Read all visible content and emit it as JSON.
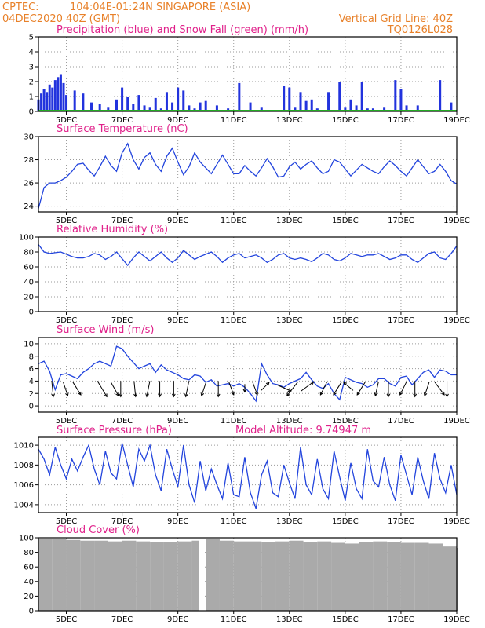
{
  "header": {
    "source": "CPTEC:",
    "location": "104:04E-01:24N  SINGAPORE (ASIA)",
    "run": "04DEC2020 40Z (GMT)",
    "grid_note": "Vertical Grid Line: 40Z",
    "code": "TQ0126L028"
  },
  "colors": {
    "header": "#e8812a",
    "titles": "#e0208a",
    "precip": "#2233dd",
    "snow": "#22aa22",
    "line": "#2244dd",
    "cloud": "#aaaaaa",
    "arrow": "#000000"
  },
  "x_axis": {
    "start_day": 4,
    "end_day": 19,
    "tick_labels": [
      "5DEC",
      "7DEC",
      "9DEC",
      "11DEC",
      "13DEC",
      "15DEC",
      "17DEC",
      "19DEC"
    ]
  },
  "panels": [
    {
      "id": "precip",
      "title": "Precipitation (blue) and Snow Fall (green) (mm/h)",
      "type": "bar",
      "ylim": [
        0,
        5
      ],
      "yticks": [
        "0",
        "1",
        "2",
        "3",
        "4",
        "5"
      ]
    },
    {
      "id": "temp",
      "title": "Surface Temperature (nC)",
      "type": "line",
      "ylim": [
        23.5,
        30
      ],
      "yticks": [
        "24",
        "26",
        "28",
        "30"
      ]
    },
    {
      "id": "rh",
      "title": "Relative Humidity (%)",
      "type": "line",
      "ylim": [
        0,
        100
      ],
      "yticks": [
        "0",
        "20",
        "40",
        "60",
        "80",
        "100"
      ]
    },
    {
      "id": "wind",
      "title": "Surface Wind (m/s)",
      "type": "line",
      "ylim": [
        -1,
        11
      ],
      "yticks": [
        "0",
        "2",
        "4",
        "6",
        "8",
        "10"
      ]
    },
    {
      "id": "pres",
      "title": "Surface Pressure (hPa)",
      "subtitle": "Model Altitude: 9.74947 m",
      "type": "line",
      "ylim": [
        1003.2,
        1010.8
      ],
      "yticks": [
        "1004",
        "1006",
        "1008",
        "1010"
      ]
    },
    {
      "id": "cloud",
      "title": "Cloud Cover (%)",
      "type": "bar",
      "ylim": [
        0,
        100
      ],
      "yticks": [
        "0",
        "20",
        "40",
        "60",
        "80",
        "100"
      ]
    }
  ],
  "chart_data": [
    {
      "type": "bar",
      "title": "Precipitation (blue) and Snow Fall (green) (mm/h)",
      "ylim": [
        0,
        5
      ],
      "x_days": [
        4.0,
        4.1,
        4.2,
        4.3,
        4.4,
        4.5,
        4.6,
        4.7,
        4.8,
        4.9,
        5.0,
        5.3,
        5.6,
        5.9,
        6.2,
        6.5,
        6.8,
        7.0,
        7.2,
        7.4,
        7.6,
        7.8,
        8.0,
        8.2,
        8.4,
        8.6,
        8.8,
        9.0,
        9.2,
        9.4,
        9.6,
        9.8,
        10.0,
        10.4,
        10.8,
        11.2,
        11.6,
        12.0,
        12.4,
        12.8,
        13.0,
        13.2,
        13.4,
        13.6,
        13.8,
        14.0,
        14.4,
        14.8,
        15.0,
        15.2,
        15.4,
        15.6,
        15.8,
        16.0,
        16.4,
        16.8,
        17.0,
        17.2,
        17.6,
        18.0,
        18.4,
        18.8
      ],
      "precip": [
        0.8,
        1.2,
        1.5,
        1.3,
        1.8,
        1.6,
        2.1,
        2.3,
        2.5,
        1.9,
        1.1,
        1.4,
        1.2,
        0.6,
        0.5,
        0.3,
        0.8,
        1.6,
        1.0,
        0.5,
        1.1,
        0.4,
        0.3,
        0.9,
        0.2,
        1.3,
        0.6,
        1.6,
        1.4,
        0.4,
        0.2,
        0.6,
        0.7,
        0.4,
        0.2,
        1.9,
        0.6,
        0.3,
        0.1,
        1.7,
        1.6,
        0.3,
        1.3,
        0.7,
        0.8,
        0.2,
        1.3,
        2.0,
        0.3,
        0.8,
        0.4,
        2.0,
        0.2,
        0.2,
        0.3,
        2.1,
        1.5,
        0.4,
        0.4,
        0.1,
        2.1,
        0.6
      ],
      "snow": 0
    },
    {
      "type": "line",
      "title": "Surface Temperature (nC)",
      "ylim": [
        23.5,
        30
      ],
      "x_days": [
        4.0,
        4.2,
        4.4,
        4.6,
        4.8,
        5.0,
        5.2,
        5.4,
        5.6,
        5.8,
        6.0,
        6.2,
        6.4,
        6.6,
        6.8,
        7.0,
        7.2,
        7.4,
        7.6,
        7.8,
        8.0,
        8.2,
        8.4,
        8.6,
        8.8,
        9.0,
        9.2,
        9.4,
        9.6,
        9.8,
        10.0,
        10.2,
        10.4,
        10.6,
        10.8,
        11.0,
        11.2,
        11.4,
        11.6,
        11.8,
        12.0,
        12.2,
        12.4,
        12.6,
        12.8,
        13.0,
        13.2,
        13.4,
        13.6,
        13.8,
        14.0,
        14.2,
        14.4,
        14.6,
        14.8,
        15.0,
        15.2,
        15.4,
        15.6,
        15.8,
        16.0,
        16.2,
        16.4,
        16.6,
        16.8,
        17.0,
        17.2,
        17.4,
        17.6,
        17.8,
        18.0,
        18.2,
        18.4,
        18.6,
        18.8,
        19.0
      ],
      "values": [
        23.8,
        25.6,
        26.0,
        26.0,
        26.2,
        26.5,
        27.0,
        27.6,
        27.7,
        27.1,
        26.6,
        27.4,
        28.3,
        27.5,
        27.0,
        28.6,
        29.4,
        28.0,
        27.2,
        28.2,
        28.6,
        27.6,
        27.0,
        28.3,
        29.0,
        27.8,
        26.7,
        27.4,
        28.6,
        27.8,
        27.3,
        26.8,
        27.6,
        28.4,
        27.6,
        26.8,
        26.8,
        27.5,
        27.0,
        26.6,
        27.3,
        28.1,
        27.4,
        26.5,
        26.6,
        27.4,
        27.8,
        27.2,
        27.6,
        27.9,
        27.3,
        26.8,
        27.0,
        28.0,
        27.8,
        27.2,
        26.6,
        27.1,
        27.6,
        27.3,
        27.0,
        26.8,
        27.4,
        27.9,
        27.5,
        27.0,
        26.6,
        27.3,
        28.0,
        27.4,
        26.8,
        27.0,
        27.6,
        27.0,
        26.2,
        25.9
      ]
    },
    {
      "type": "line",
      "title": "Relative Humidity (%)",
      "ylim": [
        0,
        100
      ],
      "x_days": [
        4.0,
        4.2,
        4.4,
        4.6,
        4.8,
        5.0,
        5.2,
        5.4,
        5.6,
        5.8,
        6.0,
        6.2,
        6.4,
        6.6,
        6.8,
        7.0,
        7.2,
        7.4,
        7.6,
        7.8,
        8.0,
        8.2,
        8.4,
        8.6,
        8.8,
        9.0,
        9.2,
        9.4,
        9.6,
        9.8,
        10.0,
        10.2,
        10.4,
        10.6,
        10.8,
        11.0,
        11.2,
        11.4,
        11.6,
        11.8,
        12.0,
        12.2,
        12.4,
        12.6,
        12.8,
        13.0,
        13.2,
        13.4,
        13.6,
        13.8,
        14.0,
        14.2,
        14.4,
        14.6,
        14.8,
        15.0,
        15.2,
        15.4,
        15.6,
        15.8,
        16.0,
        16.2,
        16.4,
        16.6,
        16.8,
        17.0,
        17.2,
        17.4,
        17.6,
        17.8,
        18.0,
        18.2,
        18.4,
        18.6,
        18.8,
        19.0
      ],
      "values": [
        90,
        80,
        78,
        79,
        80,
        77,
        74,
        72,
        72,
        74,
        78,
        76,
        70,
        74,
        80,
        71,
        62,
        72,
        80,
        74,
        68,
        74,
        80,
        72,
        66,
        72,
        82,
        76,
        70,
        74,
        77,
        80,
        74,
        66,
        72,
        76,
        78,
        72,
        74,
        76,
        72,
        66,
        70,
        76,
        78,
        72,
        70,
        72,
        70,
        67,
        72,
        78,
        76,
        70,
        68,
        72,
        78,
        76,
        74,
        76,
        76,
        78,
        74,
        70,
        72,
        76,
        76,
        70,
        66,
        72,
        78,
        80,
        72,
        70,
        78,
        88
      ]
    },
    {
      "type": "line",
      "title": "Surface Wind (m/s)",
      "ylim": [
        -1,
        11
      ],
      "x_days": [
        4.0,
        4.2,
        4.4,
        4.6,
        4.8,
        5.0,
        5.2,
        5.4,
        5.6,
        5.8,
        6.0,
        6.2,
        6.4,
        6.6,
        6.8,
        7.0,
        7.2,
        7.4,
        7.6,
        7.8,
        8.0,
        8.2,
        8.4,
        8.6,
        8.8,
        9.0,
        9.2,
        9.4,
        9.6,
        9.8,
        10.0,
        10.2,
        10.4,
        10.6,
        10.8,
        11.0,
        11.2,
        11.4,
        11.6,
        11.8,
        12.0,
        12.2,
        12.4,
        12.6,
        12.8,
        13.0,
        13.2,
        13.4,
        13.6,
        13.8,
        14.0,
        14.2,
        14.4,
        14.6,
        14.8,
        15.0,
        15.2,
        15.4,
        15.6,
        15.8,
        16.0,
        16.2,
        16.4,
        16.6,
        16.8,
        17.0,
        17.2,
        17.4,
        17.6,
        17.8,
        18.0,
        18.2,
        18.4,
        18.6,
        18.8,
        19.0
      ],
      "values": [
        6.8,
        7.2,
        5.6,
        2.6,
        5.0,
        5.2,
        4.8,
        4.4,
        5.4,
        6.0,
        6.8,
        7.2,
        6.8,
        6.4,
        9.6,
        9.2,
        8.0,
        7.0,
        6.0,
        6.4,
        6.8,
        5.4,
        6.6,
        5.8,
        5.4,
        5.0,
        4.4,
        4.2,
        5.0,
        4.8,
        3.8,
        4.2,
        3.2,
        3.4,
        3.6,
        3.2,
        3.6,
        3.0,
        2.0,
        0.8,
        6.8,
        5.0,
        3.6,
        3.4,
        3.0,
        3.6,
        4.0,
        4.4,
        5.4,
        4.2,
        3.2,
        2.8,
        3.6,
        2.0,
        1.0,
        4.6,
        4.2,
        3.8,
        3.6,
        3.0,
        3.4,
        4.4,
        4.4,
        3.6,
        3.2,
        4.6,
        4.8,
        3.4,
        4.4,
        5.4,
        5.8,
        4.6,
        5.8,
        5.6,
        5.0,
        5.0
      ],
      "arrow_days": [
        4.5,
        4.95,
        5.35,
        6.25,
        6.7,
        6.95,
        7.45,
        7.95,
        8.35,
        8.85,
        9.35,
        9.95,
        10.45,
        10.9,
        11.4,
        11.75,
        12.1,
        12.75,
        13.15,
        13.6,
        14.25,
        14.75,
        15.15,
        15.6,
        16.15,
        16.55,
        17.1,
        17.5,
        17.95,
        18.35,
        18.65
      ],
      "arrows": [
        [
          0.1,
          1
        ],
        [
          0.3,
          0.9
        ],
        [
          0.5,
          0.8
        ],
        [
          0.6,
          1
        ],
        [
          0.5,
          0.9
        ],
        [
          0,
          1
        ],
        [
          0.1,
          1
        ],
        [
          -0.2,
          1
        ],
        [
          0,
          1
        ],
        [
          0,
          1
        ],
        [
          -0.2,
          1
        ],
        [
          -0.3,
          0.9
        ],
        [
          0,
          1
        ],
        [
          0.3,
          0.8
        ],
        [
          0,
          0.5
        ],
        [
          0.3,
          0.8
        ],
        [
          0.5,
          -0.5
        ],
        [
          0.9,
          0.4
        ],
        [
          -0.7,
          0.9
        ],
        [
          0.8,
          -0.6
        ],
        [
          -0.4,
          0.8
        ],
        [
          -0.5,
          0.8
        ],
        [
          -0.6,
          -0.5
        ],
        [
          -0.5,
          0.8
        ],
        [
          -0.2,
          0.9
        ],
        [
          0,
          1
        ],
        [
          -0.4,
          0.8
        ],
        [
          0,
          1
        ],
        [
          -0.3,
          0.9
        ],
        [
          0.6,
          0.8
        ],
        [
          0,
          1
        ]
      ]
    },
    {
      "type": "line",
      "title": "Surface Pressure (hPa)",
      "ylim": [
        1003.2,
        1010.8
      ],
      "x_days": [
        4.0,
        4.2,
        4.4,
        4.6,
        4.8,
        5.0,
        5.2,
        5.4,
        5.6,
        5.8,
        6.0,
        6.2,
        6.4,
        6.6,
        6.8,
        7.0,
        7.2,
        7.4,
        7.6,
        7.8,
        8.0,
        8.2,
        8.4,
        8.6,
        8.8,
        9.0,
        9.2,
        9.4,
        9.6,
        9.8,
        10.0,
        10.2,
        10.4,
        10.6,
        10.8,
        11.0,
        11.2,
        11.4,
        11.6,
        11.8,
        12.0,
        12.2,
        12.4,
        12.6,
        12.8,
        13.0,
        13.2,
        13.4,
        13.6,
        13.8,
        14.0,
        14.2,
        14.4,
        14.6,
        14.8,
        15.0,
        15.2,
        15.4,
        15.6,
        15.8,
        16.0,
        16.2,
        16.4,
        16.6,
        16.8,
        17.0,
        17.2,
        17.4,
        17.6,
        17.8,
        18.0,
        18.2,
        18.4,
        18.6,
        18.8,
        19.0
      ],
      "values": [
        1009.6,
        1008.6,
        1007.0,
        1009.8,
        1008.0,
        1006.6,
        1008.6,
        1007.4,
        1008.8,
        1010.0,
        1007.6,
        1006.0,
        1009.4,
        1007.2,
        1006.6,
        1010.2,
        1008.0,
        1005.8,
        1009.6,
        1008.4,
        1010.0,
        1007.0,
        1005.4,
        1009.6,
        1007.6,
        1005.8,
        1010.0,
        1006.0,
        1004.2,
        1008.4,
        1005.4,
        1007.6,
        1006.0,
        1004.6,
        1008.2,
        1005.0,
        1004.8,
        1008.8,
        1005.2,
        1003.6,
        1007.0,
        1008.4,
        1005.2,
        1004.8,
        1008.0,
        1006.2,
        1004.6,
        1009.8,
        1006.0,
        1005.0,
        1008.6,
        1005.6,
        1004.6,
        1009.4,
        1006.8,
        1004.4,
        1008.2,
        1005.6,
        1004.6,
        1009.6,
        1006.4,
        1005.8,
        1008.8,
        1006.0,
        1004.4,
        1009.0,
        1007.0,
        1005.0,
        1008.8,
        1006.4,
        1004.6,
        1009.2,
        1006.6,
        1005.2,
        1008.0,
        1005.0
      ]
    },
    {
      "type": "bar",
      "title": "Cloud Cover (%)",
      "ylim": [
        0,
        100
      ],
      "x_days": [
        4.0,
        4.5,
        5.0,
        5.5,
        6.0,
        6.5,
        7.0,
        7.5,
        8.0,
        8.5,
        9.0,
        9.5,
        9.75,
        10.0,
        10.5,
        11.0,
        11.5,
        12.0,
        12.5,
        13.0,
        13.5,
        14.0,
        14.5,
        15.0,
        15.5,
        16.0,
        16.5,
        17.0,
        17.5,
        18.0,
        18.5,
        19.0
      ],
      "values": [
        98,
        98,
        97,
        96,
        96,
        95,
        96,
        95,
        94,
        94,
        95,
        96,
        0,
        98,
        96,
        95,
        95,
        94,
        95,
        96,
        94,
        95,
        93,
        92,
        94,
        95,
        94,
        93,
        93,
        92,
        88,
        86
      ]
    }
  ]
}
